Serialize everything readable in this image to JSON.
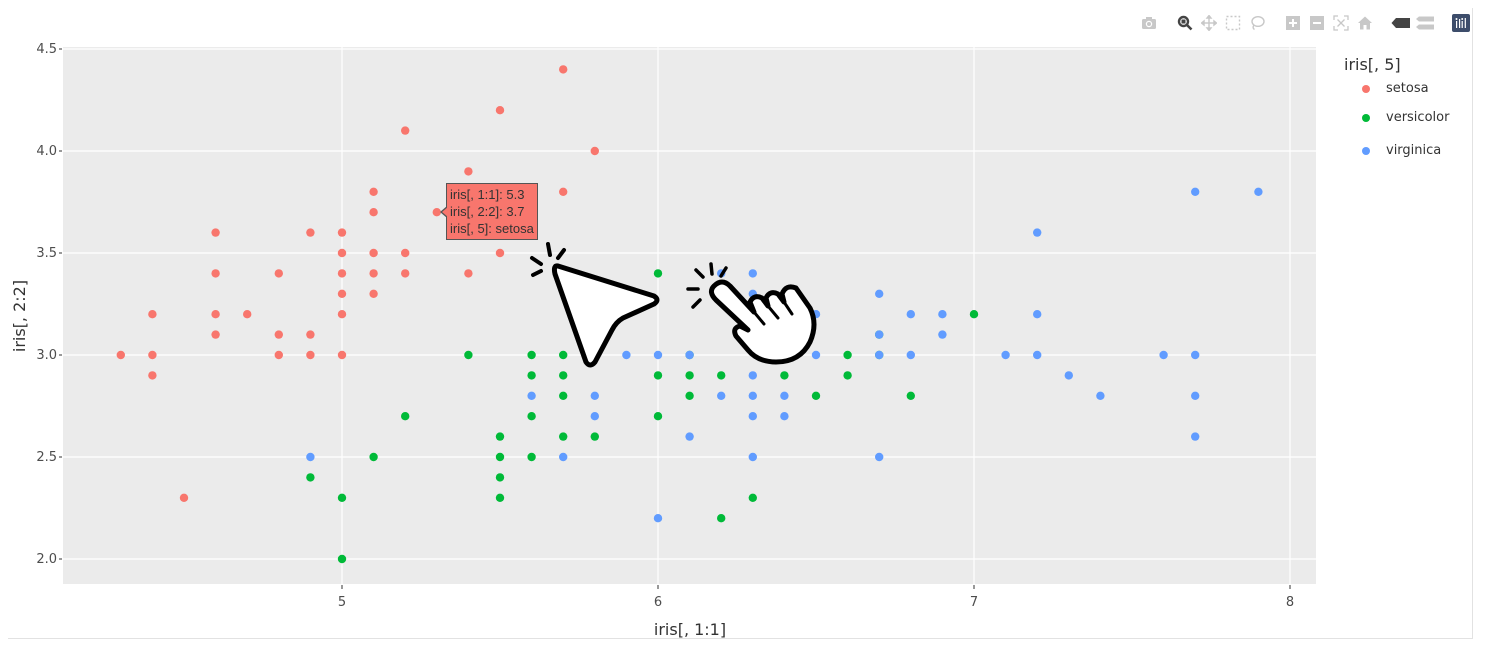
{
  "modebar": {
    "buttons": [
      {
        "name": "download-plot-camera-icon"
      },
      {
        "name": "zoom-icon",
        "active": true
      },
      {
        "name": "pan-icon"
      },
      {
        "name": "box-select-icon"
      },
      {
        "name": "lasso-select-icon"
      },
      {
        "name": "zoom-in-icon"
      },
      {
        "name": "zoom-out-icon"
      },
      {
        "name": "autoscale-icon"
      },
      {
        "name": "reset-axes-home-icon"
      },
      {
        "name": "show-closest-data-icon"
      },
      {
        "name": "compare-data-icon"
      },
      {
        "name": "plotly-logo-icon"
      }
    ]
  },
  "legend": {
    "title": "iris[, 5]",
    "items": [
      {
        "label": "setosa",
        "color": "#f8766d"
      },
      {
        "label": "versicolor",
        "color": "#00ba38"
      },
      {
        "label": "virginica",
        "color": "#619cff"
      }
    ]
  },
  "tooltip": {
    "line1": "iris[, 1:1]: 5.3",
    "line2": "iris[, 2:2]: 3.7",
    "line3": "iris[, 5]: setosa"
  },
  "colors": {
    "plot_bg": "#ebebeb",
    "grid": "#ffffff",
    "setosa": "#f8766d",
    "versicolor": "#00ba38",
    "virginica": "#619cff"
  },
  "chart_data": {
    "type": "scatter",
    "title": "",
    "xlabel": "iris[, 1:1]",
    "ylabel": "iris[, 2:2]",
    "xlim": [
      4.18,
      8.12
    ],
    "ylim": [
      1.88,
      4.52
    ],
    "x_ticks": [
      5,
      6,
      7,
      8
    ],
    "x_tick_labels": [
      "5",
      "6",
      "7",
      "8"
    ],
    "y_ticks": [
      2.0,
      2.5,
      3.0,
      3.5,
      4.0,
      4.5
    ],
    "y_tick_labels": [
      "2.0",
      "2.5",
      "3.0",
      "3.5",
      "4.0",
      "4.5"
    ],
    "grid": true,
    "legend_position": "right",
    "legend_title": "iris[, 5]",
    "series": [
      {
        "name": "setosa",
        "color": "#f8766d",
        "points": [
          [
            4.3,
            3.0
          ],
          [
            4.4,
            3.2
          ],
          [
            4.4,
            3.0
          ],
          [
            4.4,
            2.9
          ],
          [
            4.5,
            2.3
          ],
          [
            4.6,
            3.6
          ],
          [
            4.6,
            3.4
          ],
          [
            4.6,
            3.2
          ],
          [
            4.6,
            3.1
          ],
          [
            4.7,
            3.2
          ],
          [
            4.8,
            3.4
          ],
          [
            4.8,
            3.1
          ],
          [
            4.8,
            3.0
          ],
          [
            4.9,
            3.6
          ],
          [
            4.9,
            3.1
          ],
          [
            4.9,
            3.0
          ],
          [
            5.0,
            3.6
          ],
          [
            5.0,
            3.5
          ],
          [
            5.0,
            3.4
          ],
          [
            5.0,
            3.3
          ],
          [
            5.0,
            3.2
          ],
          [
            5.0,
            3.0
          ],
          [
            5.1,
            3.8
          ],
          [
            5.1,
            3.7
          ],
          [
            5.1,
            3.5
          ],
          [
            5.1,
            3.4
          ],
          [
            5.1,
            3.3
          ],
          [
            5.2,
            4.1
          ],
          [
            5.2,
            3.5
          ],
          [
            5.2,
            3.4
          ],
          [
            5.3,
            3.7
          ],
          [
            5.4,
            3.9
          ],
          [
            5.4,
            3.4
          ],
          [
            5.5,
            4.2
          ],
          [
            5.5,
            3.5
          ],
          [
            5.7,
            4.4
          ],
          [
            5.7,
            3.8
          ],
          [
            5.8,
            4.0
          ]
        ]
      },
      {
        "name": "versicolor",
        "color": "#00ba38",
        "points": [
          [
            4.9,
            2.4
          ],
          [
            5.0,
            2.3
          ],
          [
            5.0,
            2.0
          ],
          [
            5.1,
            2.5
          ],
          [
            5.2,
            2.7
          ],
          [
            5.4,
            3.0
          ],
          [
            5.5,
            2.6
          ],
          [
            5.5,
            2.5
          ],
          [
            5.5,
            2.4
          ],
          [
            5.5,
            2.3
          ],
          [
            5.6,
            3.0
          ],
          [
            5.6,
            2.9
          ],
          [
            5.6,
            2.7
          ],
          [
            5.6,
            2.5
          ],
          [
            5.7,
            3.0
          ],
          [
            5.7,
            2.9
          ],
          [
            5.7,
            2.8
          ],
          [
            5.7,
            2.6
          ],
          [
            5.8,
            2.6
          ],
          [
            6.0,
            3.4
          ],
          [
            6.0,
            2.9
          ],
          [
            6.0,
            2.7
          ],
          [
            6.1,
            3.0
          ],
          [
            6.1,
            2.9
          ],
          [
            6.1,
            2.8
          ],
          [
            6.2,
            2.9
          ],
          [
            6.2,
            2.2
          ],
          [
            6.3,
            2.3
          ],
          [
            6.4,
            2.9
          ],
          [
            6.5,
            2.8
          ],
          [
            6.6,
            3.0
          ],
          [
            6.6,
            2.9
          ],
          [
            6.7,
            3.1
          ],
          [
            6.7,
            3.0
          ],
          [
            6.8,
            2.8
          ],
          [
            7.0,
            3.2
          ]
        ]
      },
      {
        "name": "virginica",
        "color": "#619cff",
        "points": [
          [
            4.9,
            2.5
          ],
          [
            5.6,
            2.8
          ],
          [
            5.7,
            2.5
          ],
          [
            5.8,
            2.8
          ],
          [
            5.8,
            2.7
          ],
          [
            5.9,
            3.0
          ],
          [
            6.0,
            3.0
          ],
          [
            6.0,
            2.2
          ],
          [
            6.1,
            3.0
          ],
          [
            6.1,
            2.6
          ],
          [
            6.2,
            3.4
          ],
          [
            6.2,
            2.8
          ],
          [
            6.3,
            3.4
          ],
          [
            6.3,
            3.3
          ],
          [
            6.3,
            2.9
          ],
          [
            6.3,
            2.8
          ],
          [
            6.3,
            2.7
          ],
          [
            6.3,
            2.5
          ],
          [
            6.4,
            3.2
          ],
          [
            6.4,
            2.8
          ],
          [
            6.4,
            2.7
          ],
          [
            6.5,
            3.2
          ],
          [
            6.5,
            3.0
          ],
          [
            6.7,
            3.3
          ],
          [
            6.7,
            3.1
          ],
          [
            6.7,
            3.0
          ],
          [
            6.7,
            2.5
          ],
          [
            6.8,
            3.2
          ],
          [
            6.8,
            3.0
          ],
          [
            6.9,
            3.2
          ],
          [
            6.9,
            3.1
          ],
          [
            7.1,
            3.0
          ],
          [
            7.2,
            3.6
          ],
          [
            7.2,
            3.2
          ],
          [
            7.2,
            3.0
          ],
          [
            7.3,
            2.9
          ],
          [
            7.4,
            2.8
          ],
          [
            7.6,
            3.0
          ],
          [
            7.7,
            3.8
          ],
          [
            7.7,
            3.0
          ],
          [
            7.7,
            2.8
          ],
          [
            7.7,
            2.6
          ],
          [
            7.9,
            3.8
          ]
        ]
      }
    ],
    "annotations": [
      {
        "type": "hover-tooltip",
        "x": 5.3,
        "y": 3.7,
        "text": [
          "iris[, 1:1]: 5.3",
          "iris[, 2:2]: 3.7",
          "iris[, 5]: setosa"
        ]
      }
    ]
  }
}
